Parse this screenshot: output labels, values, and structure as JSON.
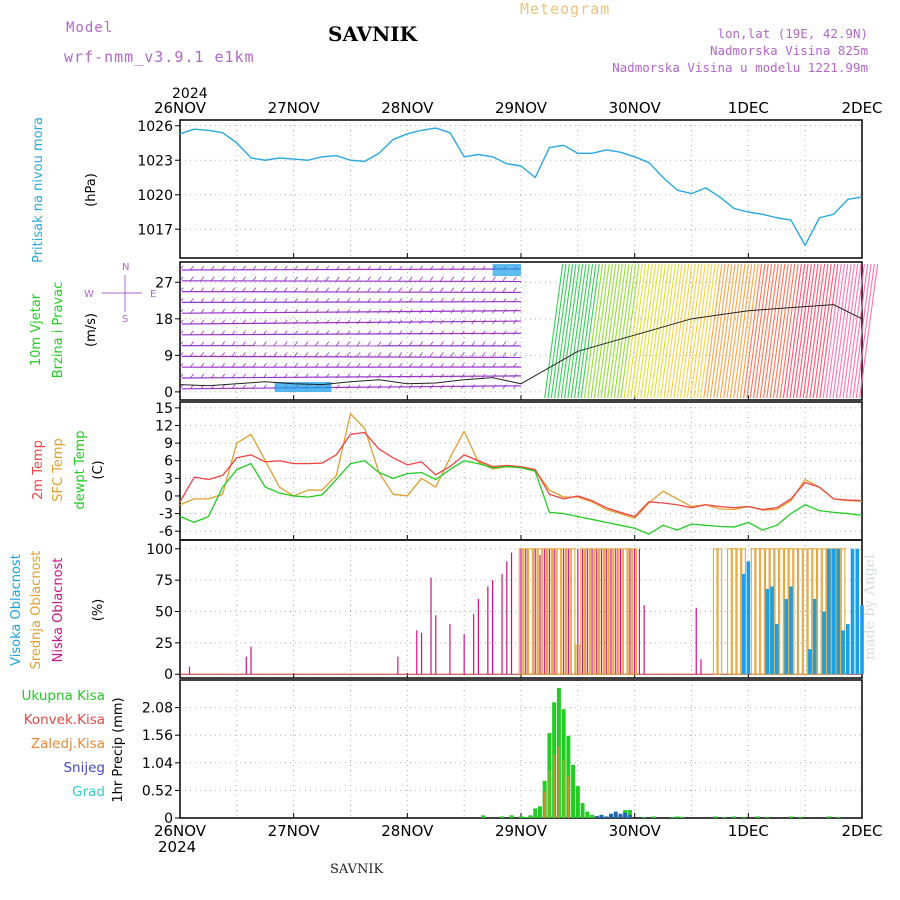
{
  "header": {
    "model_label": "Model",
    "model_name": "wrf-nmm_v3.9.1 e1km",
    "title": "SAVNIK",
    "chart_type": "Meteogram",
    "location": "lon,lat (19E, 42.9N)",
    "elevation": "Nadmorska Visina 825m",
    "model_elevation": "Nadmorska Visina u modelu 1221.99m"
  },
  "year": "2024",
  "footer_station": "SAVNIK",
  "watermark": "made by Angel",
  "colors": {
    "pressure": "#29a8e0",
    "wind_label": "#22cc22",
    "temp2m": "#ee4444",
    "sfc": "#e0a030",
    "dew": "#22cc22",
    "high_cloud": "#1aa0e8",
    "mid_cloud": "#e0a030",
    "low_cloud": "#cc1188",
    "total_precip": "#22cc22",
    "conv_precip": "#ee4444",
    "frz_precip": "#ee8833",
    "snow": "#4444cc",
    "hail": "#33cccc",
    "wind_barbs": "#9933cc",
    "axis_labels": "#b366cc"
  },
  "chart_data": [
    {
      "panel": "pressure",
      "type": "line",
      "x_tick_labels": [
        "26NOV",
        "27NOV",
        "28NOV",
        "29NOV",
        "30NOV",
        "1DEC",
        "2DEC"
      ],
      "x_unit": "hours since 26NOV 00",
      "ylabel_title": "Pritisak na nivou mora",
      "ylabel": "(hPa)",
      "yticks": [
        1017,
        1020,
        1023,
        1026
      ],
      "ylim": [
        1014.5,
        1026.5
      ],
      "grid": true,
      "series": [
        {
          "name": "Pritisak na nivou mora",
          "x": [
            0,
            3,
            6,
            9,
            12,
            15,
            18,
            21,
            24,
            27,
            30,
            33,
            36,
            39,
            42,
            45,
            48,
            51,
            54,
            57,
            60,
            63,
            66,
            69,
            72,
            75,
            78,
            81,
            84,
            87,
            90,
            93,
            96,
            99,
            102,
            105,
            108,
            111,
            114,
            117,
            120,
            123,
            126,
            129,
            132,
            135,
            138,
            141,
            144
          ],
          "values": [
            1025.3,
            1025.7,
            1025.6,
            1025.4,
            1024.5,
            1023.2,
            1023.0,
            1023.2,
            1023.1,
            1023.0,
            1023.3,
            1023.4,
            1023.0,
            1022.9,
            1023.6,
            1024.8,
            1025.3,
            1025.6,
            1025.8,
            1025.4,
            1023.3,
            1023.5,
            1023.3,
            1022.7,
            1022.5,
            1021.5,
            1024.1,
            1024.3,
            1023.6,
            1023.6,
            1023.9,
            1023.7,
            1023.3,
            1022.8,
            1021.5,
            1020.4,
            1020.1,
            1020.6,
            1019.8,
            1018.8,
            1018.5,
            1018.3,
            1018.0,
            1017.8,
            1015.6,
            1018.0,
            1018.3,
            1019.6,
            1019.8
          ]
        }
      ]
    },
    {
      "panel": "wind",
      "type": "line",
      "ylabel_title": "10m Vjetar",
      "ylabel_title2": "Brzina i Pravac",
      "ylabel": "(m/s)",
      "yticks": [
        0,
        9,
        18,
        27
      ],
      "ylim": [
        -2,
        32
      ],
      "direction_legend": [
        "N",
        "E",
        "S",
        "W"
      ],
      "series": [
        {
          "name": "Brzina",
          "x": [
            0,
            6,
            12,
            18,
            24,
            30,
            36,
            42,
            48,
            54,
            60,
            66,
            72,
            78,
            84,
            90,
            96,
            102,
            108,
            114,
            120,
            126,
            132,
            138,
            144
          ],
          "values": [
            1.8,
            1.5,
            2.0,
            2.5,
            2.0,
            1.8,
            2.5,
            3.0,
            2.0,
            2.2,
            3.0,
            3.5,
            2.0,
            6.0,
            10.0,
            12.0,
            14.0,
            16.0,
            18.0,
            19.0,
            20.0,
            20.5,
            21.0,
            21.5,
            18.0
          ]
        }
      ]
    },
    {
      "panel": "temperature",
      "type": "line",
      "ylabel_title": "2m Temp",
      "ylabel_title2": "SFC Temp",
      "ylabel_title3": "dewpt Temp",
      "ylabel": "(C)",
      "yticks": [
        -6,
        -3,
        0,
        3,
        6,
        9,
        12,
        15
      ],
      "ylim": [
        -7.5,
        16
      ],
      "series": [
        {
          "name": "2m Temp",
          "x": [
            0,
            3,
            6,
            9,
            12,
            15,
            18,
            21,
            24,
            27,
            30,
            33,
            36,
            39,
            42,
            45,
            48,
            51,
            54,
            57,
            60,
            63,
            66,
            69,
            72,
            75,
            78,
            81,
            84,
            87,
            90,
            93,
            96,
            99,
            102,
            105,
            108,
            111,
            114,
            117,
            120,
            123,
            126,
            129,
            132,
            135,
            138,
            141,
            144
          ],
          "values": [
            -1.0,
            3.2,
            2.8,
            3.5,
            6.5,
            7.0,
            5.8,
            6.0,
            5.5,
            5.5,
            5.6,
            7.0,
            10.5,
            10.8,
            8.0,
            6.5,
            5.3,
            5.8,
            3.6,
            5.0,
            7.0,
            6.0,
            5.0,
            5.2,
            5.0,
            4.5,
            0.3,
            -0.5,
            0.0,
            -0.8,
            -2.0,
            -2.8,
            -3.5,
            -1.0,
            -1.2,
            -1.5,
            -2.0,
            -1.5,
            -1.8,
            -2.0,
            -1.8,
            -2.3,
            -2.0,
            -0.5,
            2.3,
            1.5,
            -0.5,
            -0.7,
            -0.8
          ]
        },
        {
          "name": "SFC Temp",
          "x": [
            0,
            3,
            6,
            9,
            12,
            15,
            18,
            21,
            24,
            27,
            30,
            33,
            36,
            39,
            42,
            45,
            48,
            51,
            54,
            57,
            60,
            63,
            66,
            69,
            72,
            75,
            78,
            81,
            84,
            87,
            90,
            93,
            96,
            99,
            102,
            105,
            108,
            111,
            114,
            117,
            120,
            123,
            126,
            129,
            132,
            135,
            138,
            141,
            144
          ],
          "values": [
            -1.5,
            -0.5,
            -0.5,
            0.3,
            9.0,
            10.5,
            6.0,
            1.5,
            0.0,
            1.0,
            1.0,
            3.5,
            14.0,
            11.5,
            4.0,
            0.3,
            0.0,
            3.0,
            1.5,
            6.5,
            11.0,
            5.8,
            4.6,
            5.0,
            4.8,
            4.4,
            1.0,
            -0.2,
            -0.2,
            -1.0,
            -2.3,
            -3.0,
            -3.8,
            -1.2,
            0.8,
            -0.5,
            -1.8,
            -1.5,
            -2.2,
            -2.3,
            -1.8,
            -2.4,
            -2.3,
            -0.8,
            2.8,
            1.5,
            -0.5,
            -0.8,
            -0.9
          ]
        },
        {
          "name": "dewpt Temp",
          "x": [
            0,
            3,
            6,
            9,
            12,
            15,
            18,
            21,
            24,
            27,
            30,
            33,
            36,
            39,
            42,
            45,
            48,
            51,
            54,
            57,
            60,
            63,
            66,
            69,
            72,
            75,
            78,
            81,
            84,
            87,
            90,
            93,
            96,
            99,
            102,
            105,
            108,
            111,
            114,
            117,
            120,
            123,
            126,
            129,
            132,
            135,
            138,
            141,
            144
          ],
          "values": [
            -3.5,
            -4.5,
            -3.5,
            1.5,
            4.5,
            5.5,
            1.5,
            0.5,
            0.0,
            -0.2,
            0.2,
            2.8,
            5.5,
            6.0,
            4.0,
            3.0,
            3.8,
            4.0,
            2.8,
            4.5,
            6.0,
            5.5,
            4.8,
            5.0,
            4.8,
            4.2,
            -2.8,
            -3.0,
            -3.5,
            -4.0,
            -4.5,
            -5.0,
            -5.5,
            -6.5,
            -5.0,
            -5.8,
            -4.8,
            -5.0,
            -5.2,
            -5.3,
            -4.5,
            -5.8,
            -5.0,
            -3.0,
            -1.5,
            -2.5,
            -2.8,
            -3.0,
            -3.3
          ]
        }
      ]
    },
    {
      "panel": "clouds",
      "type": "bar",
      "ylabel_title": "Visoka Oblacnost",
      "ylabel_title2": "Srednja Oblacnost",
      "ylabel_title3": "Niska Oblacnost",
      "ylabel": "(%)",
      "yticks": [
        0,
        25,
        50,
        75,
        100
      ],
      "ylim": [
        -3,
        107
      ],
      "series": [
        {
          "name": "Niska Oblacnost",
          "x": [
            2,
            14,
            15,
            46,
            50,
            51,
            53,
            54,
            57,
            60,
            62,
            63,
            65,
            66,
            68,
            69,
            70,
            72,
            73,
            75,
            76,
            77,
            78,
            79,
            81,
            82,
            84,
            85,
            86,
            87,
            88,
            89,
            90,
            91,
            92,
            93,
            95,
            96,
            97,
            98,
            109,
            110
          ],
          "values": [
            6,
            14,
            22,
            14,
            35,
            33,
            77,
            47,
            40,
            32,
            48,
            60,
            70,
            75,
            80,
            90,
            97,
            100,
            100,
            100,
            95,
            100,
            100,
            100,
            100,
            100,
            100,
            100,
            100,
            100,
            100,
            100,
            100,
            100,
            100,
            100,
            100,
            100,
            100,
            55,
            53,
            12
          ]
        },
        {
          "name": "Srednja Oblacnost",
          "x": [
            72,
            73,
            74,
            75,
            76,
            77,
            78,
            79,
            80,
            81,
            82,
            83,
            84,
            85,
            86,
            87,
            88,
            89,
            90,
            91,
            92,
            93,
            94,
            95,
            96,
            113,
            114,
            116,
            117,
            118,
            119,
            121,
            122,
            123,
            124,
            125,
            126,
            127,
            128,
            129,
            130,
            131,
            132,
            133,
            134,
            135,
            136,
            137,
            138,
            139,
            140
          ],
          "values": [
            100,
            100,
            100,
            100,
            100,
            100,
            100,
            100,
            100,
            100,
            100,
            100,
            23,
            100,
            100,
            100,
            100,
            100,
            100,
            100,
            100,
            100,
            100,
            100,
            100,
            100,
            100,
            100,
            100,
            100,
            100,
            100,
            100,
            100,
            100,
            100,
            100,
            100,
            100,
            100,
            100,
            100,
            100,
            100,
            100,
            100,
            100,
            100,
            100,
            100,
            100
          ]
        },
        {
          "name": "Visoka Oblacnost",
          "x": [
            119,
            120,
            124,
            125,
            126,
            128,
            129,
            133,
            134,
            136,
            137,
            138,
            139,
            140,
            141,
            142,
            143,
            144
          ],
          "values": [
            80,
            90,
            68,
            70,
            40,
            60,
            70,
            20,
            60,
            50,
            100,
            100,
            100,
            35,
            40,
            100,
            100,
            55
          ]
        }
      ]
    },
    {
      "panel": "precip",
      "type": "bar",
      "ylabel_title": "1hr Precip",
      "ylabel": "(mm)",
      "yticks": [
        0,
        0.52,
        1.04,
        1.56,
        2.08
      ],
      "ylim": [
        0,
        2.6
      ],
      "legend_left": [
        "Ukupna Kisa",
        "Konvek.Kisa",
        "Zaledj.Kisa",
        "Snijeg",
        "Grad"
      ],
      "series": [
        {
          "name": "Ukupna Kisa",
          "x": [
            64,
            68,
            70,
            72,
            73,
            74,
            75,
            76,
            77,
            78,
            79,
            80,
            81,
            82,
            83,
            84,
            85,
            86,
            87,
            88,
            90,
            91,
            94,
            95,
            98,
            100,
            104,
            105,
            106,
            113,
            115,
            117,
            119,
            122,
            124,
            129,
            131,
            137,
            139
          ],
          "values": [
            0.05,
            0.03,
            0.05,
            0.03,
            0.02,
            0.05,
            0.18,
            0.22,
            0.7,
            1.6,
            2.18,
            2.45,
            2.05,
            1.55,
            1.0,
            0.6,
            0.28,
            0.12,
            0.06,
            0.03,
            0.02,
            0.03,
            0.15,
            0.15,
            0.02,
            0.03,
            0.02,
            0.03,
            0.02,
            0.03,
            0.02,
            0.03,
            0.02,
            0.03,
            0.02,
            0.03,
            0.02,
            0.03,
            0.02
          ]
        },
        {
          "name": "Snijeg",
          "x": [
            88,
            89,
            90,
            91,
            92,
            93,
            94,
            95
          ],
          "values": [
            0.04,
            0.06,
            0.03,
            0.08,
            0.12,
            0.08,
            0.1,
            0.06
          ]
        }
      ]
    }
  ]
}
